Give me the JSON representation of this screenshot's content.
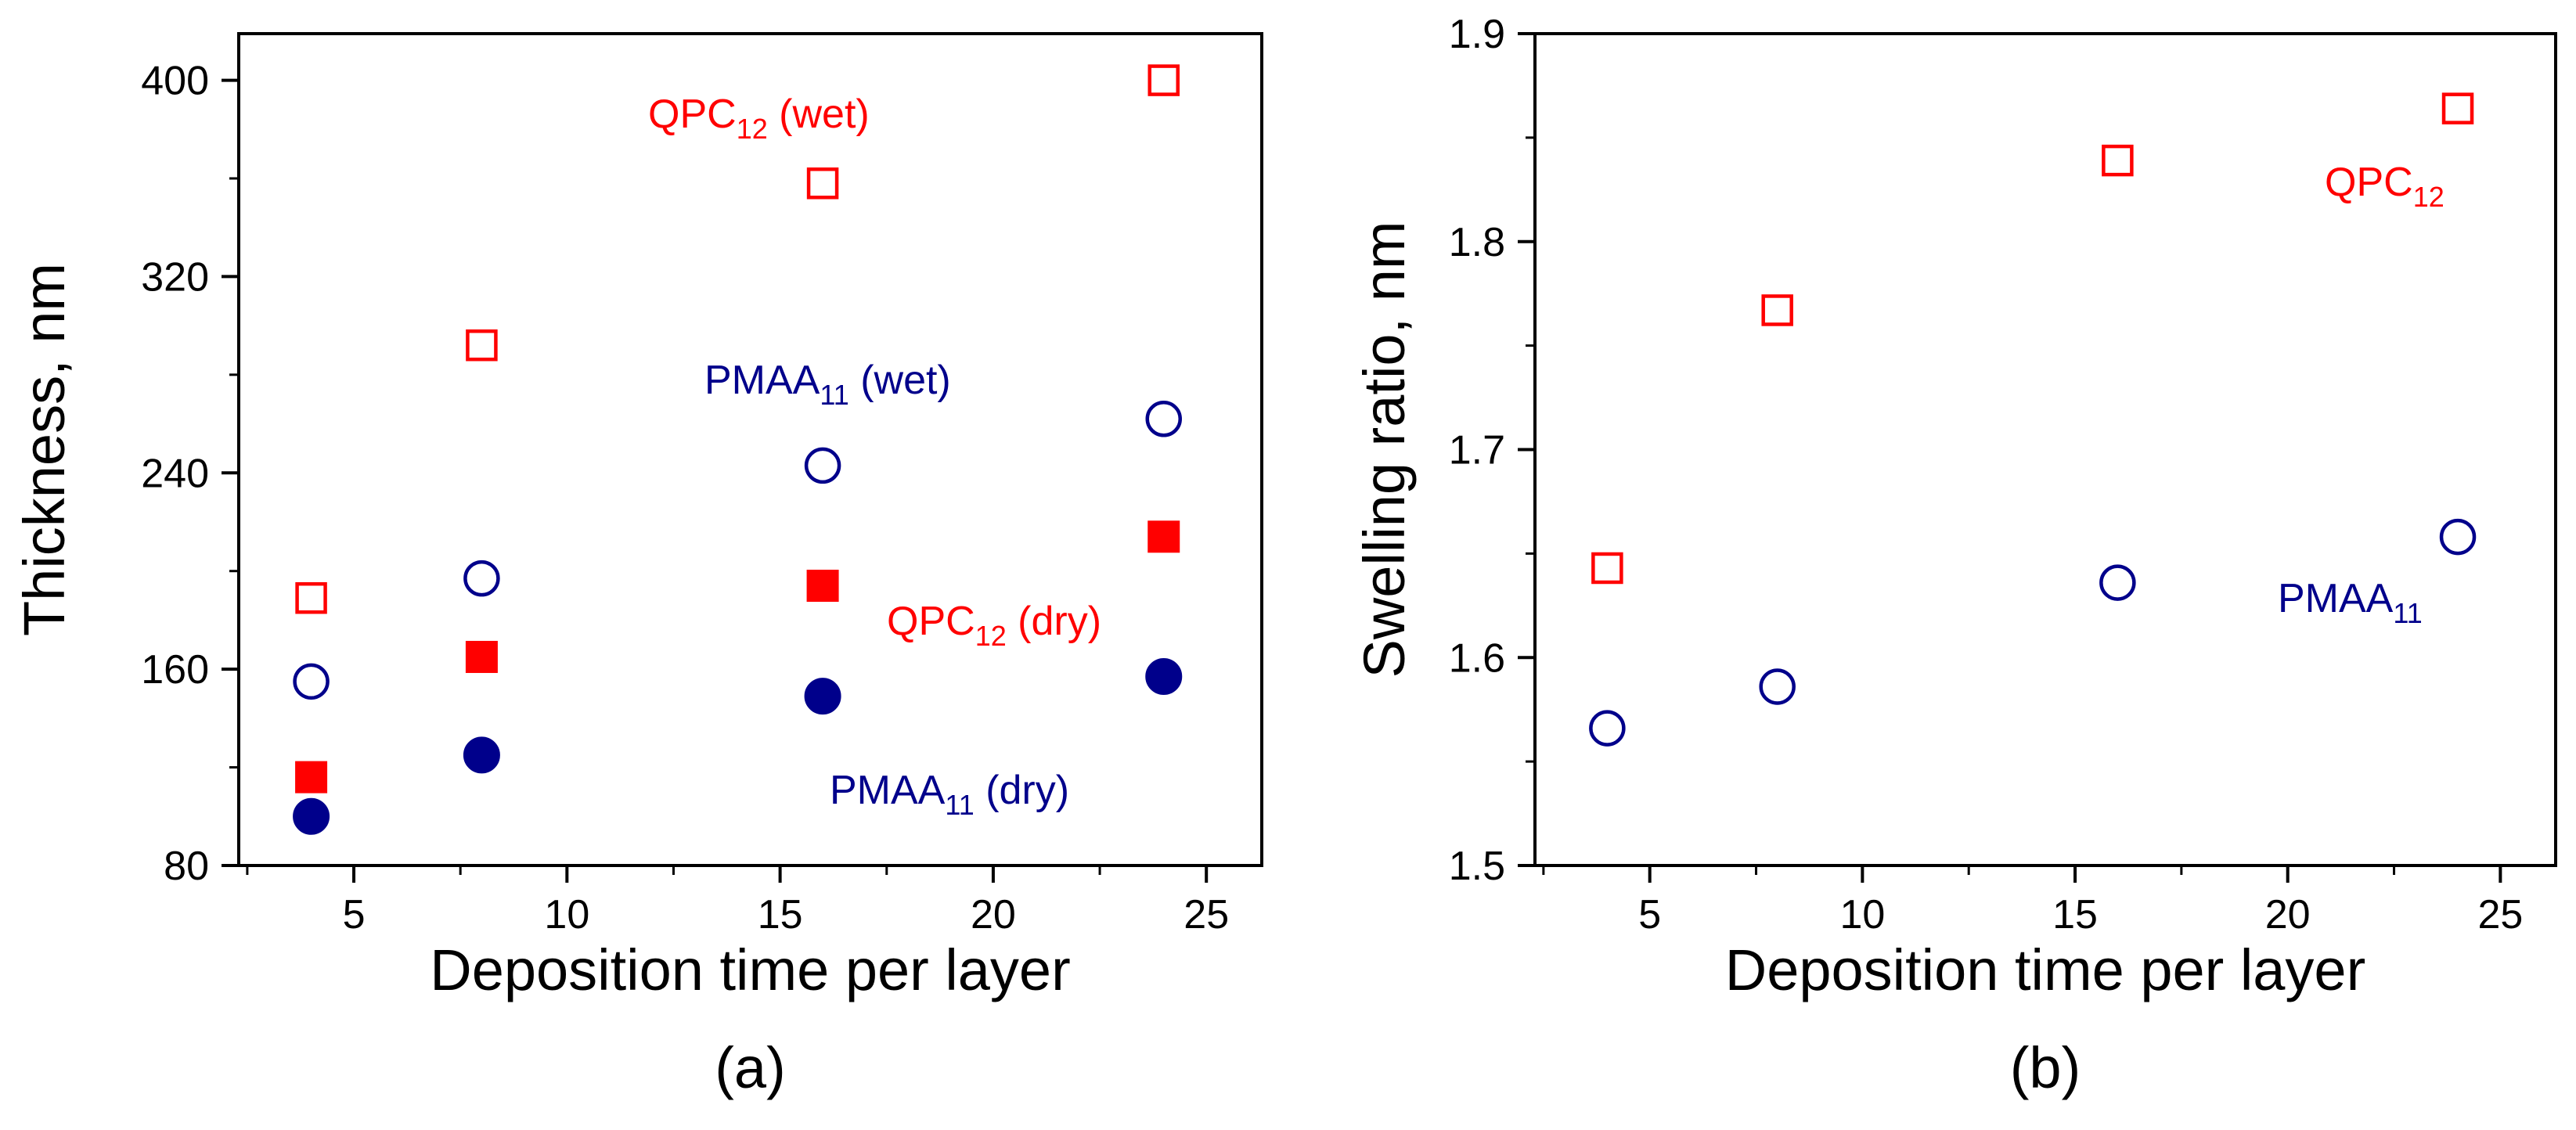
{
  "chart_data": [
    {
      "type": "scatter",
      "panel_label": "(a)",
      "xlabel": "Deposition time per layer",
      "ylabel": "Thickness, nm",
      "xlim": [
        2.3,
        26.3
      ],
      "ylim": [
        80,
        419
      ],
      "xticks": [
        5,
        10,
        15,
        20,
        25
      ],
      "yticks": [
        80,
        160,
        240,
        320,
        400
      ],
      "x_minor_step": 2.5,
      "y_minor_step": 40,
      "series": [
        {
          "name": "QPC12 (wet)",
          "marker": "square-open",
          "color": "#ff0000",
          "x": [
            4,
            8,
            16,
            24
          ],
          "y": [
            189,
            292,
            358,
            400
          ]
        },
        {
          "name": "QPC12 (dry)",
          "marker": "square-filled",
          "color": "#ff0000",
          "x": [
            4,
            8,
            16,
            24
          ],
          "y": [
            116,
            165,
            194,
            214
          ]
        },
        {
          "name": "PMAA11 (wet)",
          "marker": "circle-open",
          "color": "#00008b",
          "x": [
            4,
            8,
            16,
            24
          ],
          "y": [
            155,
            197,
            243,
            262
          ]
        },
        {
          "name": "PMAA11 (dry)",
          "marker": "circle-filled",
          "color": "#00008b",
          "x": [
            4,
            8,
            16,
            24
          ],
          "y": [
            100,
            125,
            149,
            157
          ]
        }
      ],
      "annotations": [
        {
          "id": "qpc-wet",
          "base": "QPC",
          "sub": "12",
          "suffix": " (wet)",
          "color": "#ff0000"
        },
        {
          "id": "pmaa-wet",
          "base": "PMAA",
          "sub": "11",
          "suffix": " (wet)",
          "color": "#00008b"
        },
        {
          "id": "qpc-dry",
          "base": "QPC",
          "sub": "12",
          "suffix": " (dry)",
          "color": "#ff0000"
        },
        {
          "id": "pmaa-dry",
          "base": "PMAA",
          "sub": "11",
          "suffix": " (dry)",
          "color": "#00008b"
        }
      ]
    },
    {
      "type": "scatter",
      "panel_label": "(b)",
      "xlabel": "Deposition time per layer",
      "ylabel": "Swelling ratio, nm",
      "xlim": [
        2.3,
        26.3
      ],
      "ylim": [
        1.5,
        1.9
      ],
      "xticks": [
        5,
        10,
        15,
        20,
        25
      ],
      "yticks": [
        1.5,
        1.6,
        1.7,
        1.8,
        1.9
      ],
      "x_minor_step": 2.5,
      "y_minor_step": 0.05,
      "series": [
        {
          "name": "QPC12",
          "marker": "square-open",
          "color": "#ff0000",
          "x": [
            4,
            8,
            16,
            24
          ],
          "y": [
            1.643,
            1.767,
            1.839,
            1.864
          ]
        },
        {
          "name": "PMAA11",
          "marker": "circle-open",
          "color": "#00008b",
          "x": [
            4,
            8,
            16,
            24
          ],
          "y": [
            1.566,
            1.586,
            1.636,
            1.658
          ]
        }
      ],
      "annotations": [
        {
          "id": "qpc",
          "base": "QPC",
          "sub": "12",
          "suffix": "",
          "color": "#ff0000"
        },
        {
          "id": "pmaa",
          "base": "PMAA",
          "sub": "11",
          "suffix": "",
          "color": "#00008b"
        }
      ]
    }
  ]
}
